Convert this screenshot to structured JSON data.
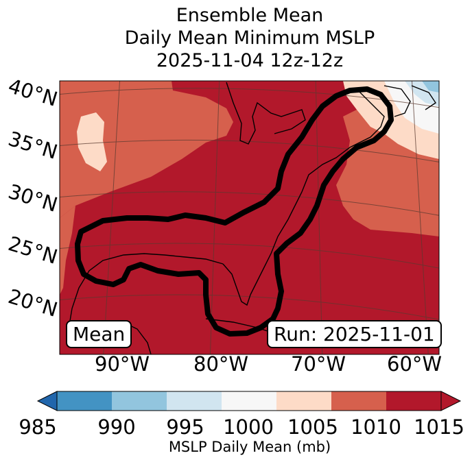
{
  "title": {
    "line1": "Ensemble Mean",
    "line2": "Daily Mean Minimum MSLP",
    "line3": "2025-11-04 12z-12z"
  },
  "map": {
    "region": "Eastern United States, Gulf of Mexico and western Atlantic",
    "lat_labels": [
      "40°N",
      "35°N",
      "30°N",
      "25°N",
      "20°N"
    ],
    "lon_labels": [
      "90°W",
      "80°W",
      "70°W",
      "60°W"
    ],
    "mean_badge": "Mean",
    "run_badge": "Run: 2025-11-01",
    "contour_color": "#000000"
  },
  "colorbar": {
    "ticks": [
      "985",
      "990",
      "995",
      "1000",
      "1005",
      "1010",
      "1015"
    ],
    "colors": [
      "#4393c3",
      "#92c5de",
      "#d1e5f0",
      "#f7f7f7",
      "#fddbc7",
      "#d6604d",
      "#b2182b"
    ],
    "under_color": "#2166ac",
    "over_color": "#b2182b",
    "label": "MSLP Daily Mean (mb)"
  },
  "field_colors": {
    "low": "#b2182b",
    "mid": "#d6604d",
    "high": "#fddbc7",
    "pale": "#f7f7f7",
    "blue": "#d1e5f0"
  }
}
